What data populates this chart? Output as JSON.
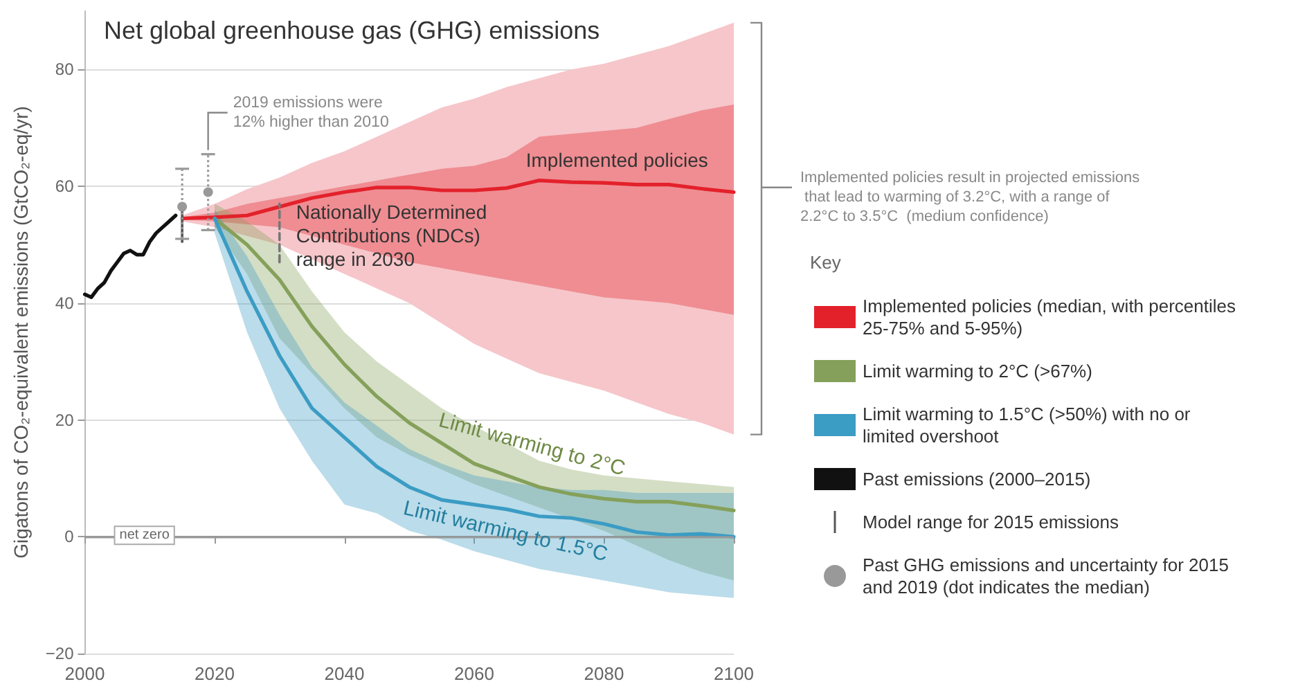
{
  "chart_data": {
    "type": "line",
    "title": "Net global greenhouse gas (GHG) emissions",
    "ylabel": "Gigatons of CO₂-equivalent emissions (GtCO₂-eq/yr)",
    "legend_title": "Key",
    "legend": "right",
    "grid": "y",
    "xlim": [
      2000,
      2100
    ],
    "xticks": [
      2000,
      2020,
      2040,
      2060,
      2080,
      2100
    ],
    "ylim": [
      -20,
      90
    ],
    "yticks": [
      -20,
      0,
      20,
      40,
      60,
      80
    ],
    "series": [
      {
        "color": "#f6c6ca",
        "x": [
          2015,
          2020,
          2025,
          2030,
          2035,
          2040,
          2045,
          2050,
          2055,
          2060,
          2065,
          2070,
          2075,
          2080,
          2085,
          2090,
          2095,
          2100
        ],
        "values": [
          null,
          null,
          null,
          null,
          null,
          null,
          null,
          null,
          null,
          null,
          null,
          null,
          null,
          null,
          null,
          null,
          null,
          null
        ],
        "lower": [
          54,
          53,
          51.5,
          50,
          47.5,
          45,
          42.5,
          40,
          36.5,
          33,
          30.5,
          28,
          26.5,
          25,
          23,
          21,
          19.5,
          17.5
        ],
        "upper": [
          55,
          57,
          59.5,
          61.5,
          64,
          66,
          68.5,
          71,
          73.5,
          75,
          77,
          78.5,
          80,
          81,
          82.5,
          84,
          86,
          88
        ]
      },
      {
        "name": "Implemented policies (median, with percentiles 25-75% and 5-95%)",
        "color": "#e3212b",
        "x": [
          2015,
          2020,
          2025,
          2030,
          2035,
          2040,
          2045,
          2050,
          2055,
          2060,
          2065,
          2070,
          2075,
          2080,
          2085,
          2090,
          2095,
          2100
        ],
        "values": [
          54.5,
          54.7,
          55,
          56.5,
          58,
          59,
          59.8,
          59.8,
          59.3,
          59.3,
          59.7,
          61,
          60.7,
          60.6,
          60.3,
          60.3,
          59.6,
          59
        ],
        "lower": [
          54.3,
          54,
          53.5,
          53,
          51.5,
          50,
          48.5,
          47,
          46,
          45,
          44,
          43,
          42,
          41,
          40.5,
          40,
          39,
          38
        ],
        "upper": [
          54.7,
          55.5,
          57,
          58,
          59,
          60,
          61,
          62,
          63,
          63.5,
          65,
          68.5,
          69,
          69.5,
          70,
          71.5,
          73,
          74
        ]
      },
      {
        "name": "Limit warming to 2°C (>67%)",
        "color": "#85a05a",
        "x": [
          2020,
          2025,
          2030,
          2035,
          2040,
          2045,
          2050,
          2055,
          2060,
          2065,
          2070,
          2075,
          2080,
          2085,
          2090,
          2095,
          2100
        ],
        "values": [
          54.5,
          50,
          44,
          36,
          29.5,
          24,
          19.5,
          16,
          12.5,
          10.5,
          8.5,
          7.3,
          6.5,
          6,
          6,
          5.3,
          4.5
        ],
        "lower": [
          53,
          45,
          34,
          28,
          22,
          17,
          14,
          11.5,
          9,
          7,
          5,
          3,
          1,
          -1.5,
          -4,
          -6,
          -7.5
        ],
        "upper": [
          57,
          54,
          50,
          42,
          35,
          30,
          26,
          22,
          19,
          16,
          13,
          11.5,
          10.5,
          10,
          9.5,
          9,
          8.5
        ]
      },
      {
        "name": "Limit warming to 1.5°C (>50%) with no or limited overshoot",
        "color": "#3b9cc4",
        "x": [
          2020,
          2025,
          2030,
          2035,
          2040,
          2045,
          2050,
          2055,
          2060,
          2065,
          2070,
          2075,
          2080,
          2085,
          2090,
          2095,
          2100
        ],
        "values": [
          54.5,
          42,
          31,
          22,
          17,
          12,
          8.5,
          6.3,
          5.5,
          4.7,
          3.5,
          3.2,
          2.2,
          0.8,
          0.3,
          0.5,
          0
        ],
        "lower": [
          52,
          35,
          22,
          13,
          5.5,
          4,
          1,
          -0.5,
          -2.5,
          -4,
          -5.5,
          -6.5,
          -7.5,
          -8.5,
          -9.5,
          -10,
          -10.5
        ],
        "upper": [
          56,
          48,
          38,
          29,
          23,
          19,
          15,
          12.5,
          10.5,
          9.5,
          8.5,
          8,
          8,
          7.5,
          7.5,
          7.5,
          7.5
        ]
      },
      {
        "name": "Past emissions (2000–2015)",
        "color": "#111111",
        "x": [
          2000,
          2001,
          2002,
          2003,
          2004,
          2005,
          2006,
          2007,
          2008,
          2009,
          2010,
          2011,
          2012,
          2013,
          2014
        ],
        "values": [
          41.5,
          41,
          42.5,
          43.5,
          45.5,
          47,
          48.5,
          49,
          48.3,
          48.3,
          50.5,
          52,
          53,
          54,
          55
        ]
      },
      {
        "name": "Model range for 2015 emissions",
        "color": "#555555",
        "marker": "none",
        "line_style": "solid",
        "x": [
          2015,
          2015
        ],
        "values": [
          50.5,
          56.5
        ]
      },
      {
        "type": "scatter",
        "name": "Past GHG emissions and uncertainty for 2015 and 2019 (dot indicates the median)",
        "color": "#999999",
        "marker": "circle",
        "line_style": "dotted",
        "x": [
          2015,
          2019
        ],
        "values": [
          56.5,
          59
        ],
        "errors": [
          [
            51,
            63
          ],
          [
            52.5,
            65.5
          ]
        ]
      },
      {
        "color": "#777777",
        "marker": "none",
        "line_style": "dashed",
        "x": [
          2030,
          2030
        ],
        "values": [
          47,
          57
        ]
      }
    ],
    "ref_lines": [
      {
        "axis": "y",
        "value": 0,
        "label": "net zero",
        "color": "#999999"
      }
    ],
    "annotations": [
      {
        "text": "2019 emissions were 12% higher than 2010",
        "x": 2019,
        "y": 65.5
      },
      {
        "text": "Nationally Determined Contributions (NDCs) range in 2030",
        "x": 2030,
        "y": 52
      },
      {
        "text": "Implemented policies",
        "x": 2082,
        "y": 61
      },
      "Limit warming to 2°C",
      "Limit warming to 1.5°C",
      "Implemented policies result in projected emissions that lead to warming of 3.2°C, with a range of 2.2°C to 3.5°C  (medium confidence)"
    ]
  }
}
